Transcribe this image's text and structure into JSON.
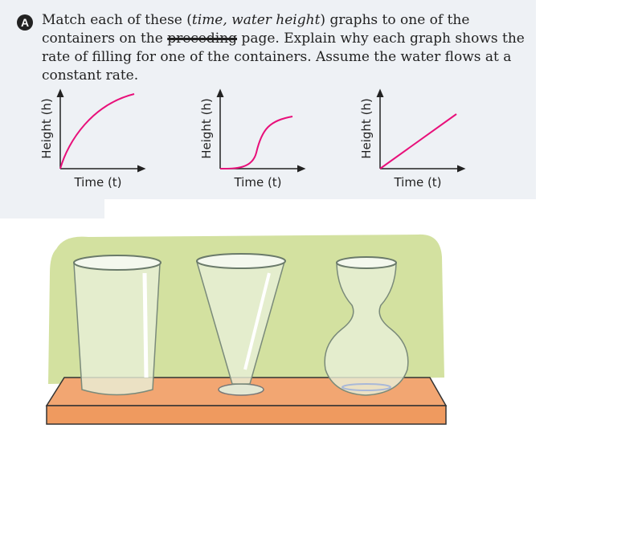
{
  "exercise": {
    "label": "A",
    "instruction": [
      "Match each of these (",
      "time, water height",
      ") graphs to one of the containers on the ",
      "preceding",
      " page. Explain why each graph shows the rate of filling for one of the containers. Assume the water flows at a constant rate."
    ],
    "graphs": [
      {
        "y_label": "Height (h)",
        "x_label": "Time (t)"
      },
      {
        "y_label": "Height (h)",
        "x_label": "Time (t)"
      },
      {
        "y_label": "Height (h)",
        "x_label": "Time (t)"
      }
    ]
  }
}
